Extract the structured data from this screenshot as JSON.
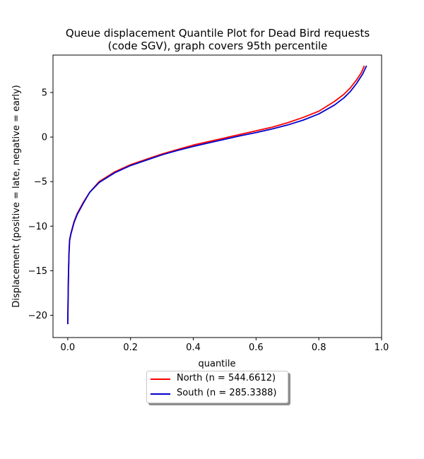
{
  "chart_data": {
    "type": "line",
    "title_line1": "Queue displacement Quantile Plot for Dead Bird  requests",
    "title_line2": "(code SGV), graph covers 95th percentile",
    "xlabel": "quantile",
    "ylabel": "Displacement (positive = late, negative = early)",
    "xlim": [
      -0.047,
      1.0
    ],
    "ylim": [
      -22.5,
      9.2
    ],
    "xticks": [
      0.0,
      0.2,
      0.4,
      0.6,
      0.8,
      1.0
    ],
    "xtick_labels": [
      "0.0",
      "0.2",
      "0.4",
      "0.6",
      "0.8",
      "1.0"
    ],
    "yticks": [
      -20,
      -15,
      -10,
      -5,
      0,
      5
    ],
    "ytick_labels": [
      "−20",
      "−15",
      "−10",
      "−5",
      "0",
      "5"
    ],
    "grid": false,
    "legend_position": "below",
    "series": [
      {
        "name": "North (n = 544.6612)",
        "color": "#ff0000",
        "x": [
          0.0,
          0.002,
          0.004,
          0.006,
          0.01,
          0.02,
          0.03,
          0.05,
          0.07,
          0.1,
          0.15,
          0.2,
          0.25,
          0.3,
          0.35,
          0.4,
          0.45,
          0.5,
          0.55,
          0.6,
          0.65,
          0.7,
          0.75,
          0.8,
          0.85,
          0.88,
          0.9,
          0.92,
          0.935,
          0.945
        ],
        "y": [
          -21.0,
          -16.0,
          -13.0,
          -11.5,
          -10.8,
          -9.5,
          -8.6,
          -7.3,
          -6.2,
          -5.0,
          -3.9,
          -3.1,
          -2.5,
          -1.9,
          -1.4,
          -0.9,
          -0.5,
          -0.1,
          0.3,
          0.7,
          1.1,
          1.6,
          2.2,
          2.9,
          4.0,
          4.8,
          5.5,
          6.4,
          7.2,
          8.0
        ]
      },
      {
        "name": "South (n = 285.3388)",
        "color": "#0000cc",
        "x": [
          0.0,
          0.002,
          0.004,
          0.006,
          0.01,
          0.02,
          0.03,
          0.05,
          0.07,
          0.1,
          0.15,
          0.2,
          0.25,
          0.3,
          0.35,
          0.4,
          0.45,
          0.5,
          0.55,
          0.6,
          0.65,
          0.7,
          0.75,
          0.8,
          0.85,
          0.88,
          0.9,
          0.92,
          0.94,
          0.952
        ],
        "y": [
          -21.0,
          -16.0,
          -13.0,
          -11.6,
          -10.9,
          -9.6,
          -8.7,
          -7.4,
          -6.2,
          -5.1,
          -4.0,
          -3.2,
          -2.6,
          -2.0,
          -1.5,
          -1.05,
          -0.65,
          -0.25,
          0.15,
          0.5,
          0.9,
          1.35,
          1.9,
          2.6,
          3.6,
          4.4,
          5.1,
          6.0,
          7.1,
          8.0
        ]
      }
    ]
  }
}
